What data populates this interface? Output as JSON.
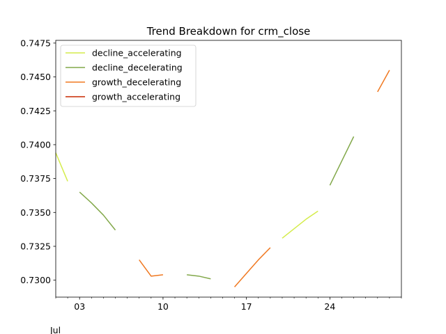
{
  "chart_data": {
    "type": "line",
    "title": "Trend Breakdown for crm_close",
    "xlabel": "",
    "ylabel": "",
    "x_tick_labels": [
      "03",
      "10",
      "17",
      "24"
    ],
    "x_offset_label": "Jul",
    "x_tick_days": [
      3,
      10,
      17,
      24
    ],
    "xlim_days": [
      1,
      30
    ],
    "ylim": [
      0.72875,
      0.7477
    ],
    "y_ticks": [
      0.73,
      0.7325,
      0.735,
      0.7375,
      0.74,
      0.7425,
      0.745,
      0.7475
    ],
    "y_tick_labels": [
      "0.7300",
      "0.7325",
      "0.7350",
      "0.7375",
      "0.7400",
      "0.7425",
      "0.7450",
      "0.7475"
    ],
    "legend_position": "top-left",
    "grid": false,
    "series": [
      {
        "name": "decline_accelerating",
        "color": "#d4ec4a",
        "segments": [
          [
            [
              1,
              0.7394
            ],
            [
              2,
              0.7373
            ]
          ],
          [
            [
              20,
              0.7331
            ],
            [
              21,
              0.7338
            ],
            [
              22,
              0.7345
            ],
            [
              23,
              0.7351
            ]
          ]
        ]
      },
      {
        "name": "decline_decelerating",
        "color": "#82a84a",
        "segments": [
          [
            [
              3,
              0.7365
            ],
            [
              4,
              0.7357
            ],
            [
              5,
              0.7348
            ],
            [
              6,
              0.7337
            ]
          ],
          [
            [
              12,
              0.7304
            ],
            [
              13,
              0.7303
            ],
            [
              14,
              0.7301
            ]
          ],
          [
            [
              24,
              0.737
            ],
            [
              25,
              0.7388
            ],
            [
              26,
              0.7406
            ]
          ]
        ]
      },
      {
        "name": "growth_decelerating",
        "color": "#f07820",
        "segments": [
          [
            [
              8,
              0.7315
            ],
            [
              9,
              0.7303
            ],
            [
              10,
              0.7304
            ]
          ],
          [
            [
              16,
              0.7295
            ],
            [
              17,
              0.7305
            ],
            [
              18,
              0.7315
            ],
            [
              19,
              0.7324
            ]
          ],
          [
            [
              28,
              0.7439
            ],
            [
              29,
              0.7455
            ]
          ]
        ]
      },
      {
        "name": "growth_accelerating",
        "color": "#c82800",
        "segments": []
      }
    ]
  }
}
